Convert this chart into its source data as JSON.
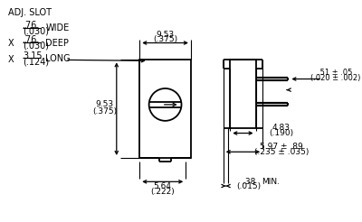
{
  "bg_color": "#ffffff",
  "line_color": "#000000",
  "fig_width": 4.0,
  "fig_height": 2.46,
  "dpi": 100,
  "annotations": {
    "adj_slot": "ADJ. SLOT",
    "wide_top": ".76",
    "wide_bot": "(.030)",
    "wide_label": "WIDE",
    "deep_top": ".76",
    "deep_bot": "(.030)",
    "deep_label": "DEEP",
    "long_top": "3.15",
    "long_bot": "(.124)",
    "long_label": "LONG",
    "dim_9_53_top_top": "9.53",
    "dim_9_53_top_bot": "(.375)",
    "dim_9_53_left_top": "9.53",
    "dim_9_53_left_bot": "(.375)",
    "dim_5_64_top": "5.64",
    "dim_5_64_bot": "(.222)",
    "dim_5_97_top": "5.97 ± .89",
    "dim_5_97_bot": "(.235 ± .035)",
    "dim_4_83_top": "4.83",
    "dim_4_83_bot": "(.190)",
    "dim_51_top": ".51 ± .05",
    "dim_51_bot": "(.020 ± .002)",
    "dim_38_top": ".38",
    "dim_38_bot": "(.015)",
    "min_label": "MIN.",
    "x_label": "X"
  }
}
